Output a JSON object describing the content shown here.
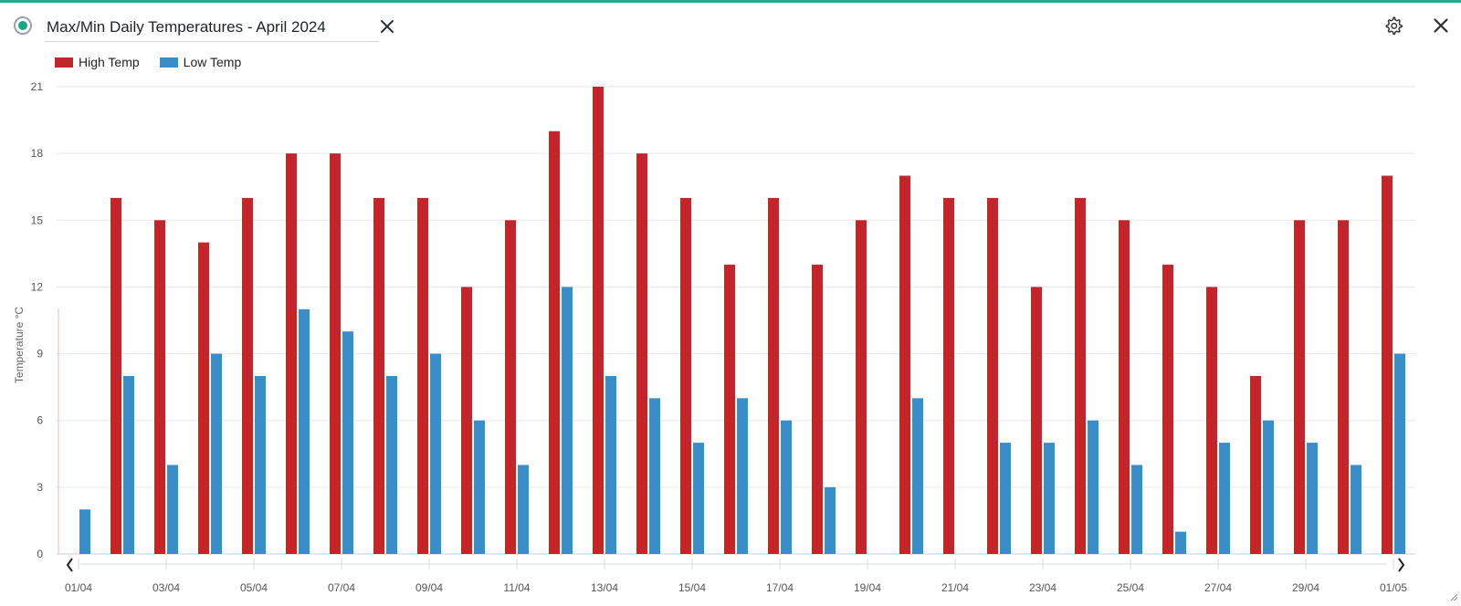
{
  "header": {
    "title_value": "Max/Min Daily Temperatures - April 2024",
    "status_color": "#20a37f"
  },
  "icons": {
    "status": "status-dot-icon",
    "clear": "close-icon",
    "settings": "gear-icon",
    "close": "close-icon",
    "scroll_left": "chevron-left-icon",
    "scroll_right": "chevron-right-icon",
    "resize": "resize-grip-icon"
  },
  "chart_data": {
    "type": "bar",
    "title": "",
    "xlabel": "",
    "ylabel": "Temperature °C",
    "ylim": [
      0,
      21
    ],
    "yticks": [
      0,
      3,
      6,
      9,
      12,
      15,
      18,
      21
    ],
    "grid": true,
    "legend": "top-left",
    "categories": [
      "01/04",
      "02/04",
      "03/04",
      "04/04",
      "05/04",
      "06/04",
      "07/04",
      "08/04",
      "09/04",
      "10/04",
      "11/04",
      "12/04",
      "13/04",
      "14/04",
      "15/04",
      "16/04",
      "17/04",
      "18/04",
      "19/04",
      "20/04",
      "21/04",
      "22/04",
      "23/04",
      "24/04",
      "25/04",
      "26/04",
      "27/04",
      "28/04",
      "29/04",
      "30/04",
      "01/05"
    ],
    "xtick_labels": [
      "01/04",
      "03/04",
      "05/04",
      "07/04",
      "09/04",
      "11/04",
      "13/04",
      "15/04",
      "17/04",
      "19/04",
      "21/04",
      "23/04",
      "25/04",
      "27/04",
      "29/04",
      "01/05"
    ],
    "series": [
      {
        "name": "High Temp",
        "color": "#c0272b",
        "values": [
          null,
          16,
          15,
          14,
          16,
          18,
          18,
          16,
          16,
          12,
          15,
          19,
          21,
          18,
          16,
          13,
          16,
          13,
          15,
          17,
          16,
          16,
          12,
          16,
          15,
          13,
          12,
          8,
          15,
          15,
          17
        ]
      },
      {
        "name": "Low Temp",
        "color": "#3a8dc8",
        "values": [
          2,
          8,
          4,
          9,
          8,
          11,
          10,
          8,
          9,
          6,
          4,
          12,
          8,
          7,
          5,
          7,
          6,
          3,
          null,
          7,
          null,
          5,
          5,
          6,
          4,
          1,
          5,
          6,
          5,
          4,
          9
        ]
      }
    ]
  }
}
